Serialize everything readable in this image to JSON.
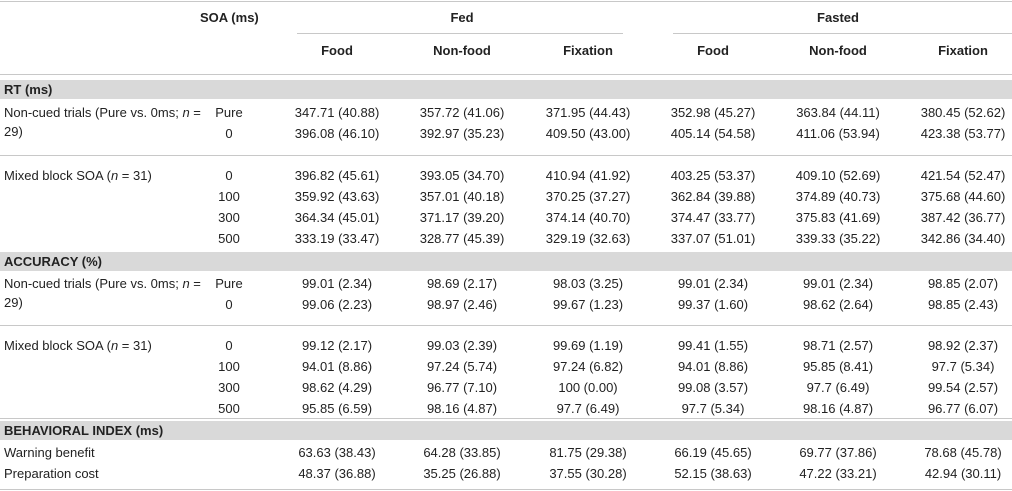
{
  "header": {
    "soa_label": "SOA (ms)",
    "fed": "Fed",
    "fasted": "Fasted",
    "columns": [
      "Food",
      "Non-food",
      "Fixation",
      "Food",
      "Non-food",
      "Fixation"
    ]
  },
  "sections": [
    {
      "title": "RT (ms)",
      "groups": [
        {
          "label_parts": [
            "Non-cued trials (Pure vs. 0ms; ",
            "n",
            " = 29)"
          ],
          "rows": [
            {
              "soa": "Pure",
              "values": [
                "347.71 (40.88)",
                "357.72 (41.06)",
                "371.95 (44.43)",
                "352.98 (45.27)",
                "363.84 (44.11)",
                "380.45 (52.62)"
              ]
            },
            {
              "soa": "0",
              "values": [
                "396.08 (46.10)",
                "392.97 (35.23)",
                "409.50 (43.00)",
                "405.14 (54.58)",
                "411.06 (53.94)",
                "423.38 (53.77)"
              ]
            }
          ]
        },
        {
          "label_parts": [
            "Mixed block SOA (",
            "n",
            " = 31)"
          ],
          "rows": [
            {
              "soa": "0",
              "values": [
                "396.82 (45.61)",
                "393.05 (34.70)",
                "410.94 (41.92)",
                "403.25 (53.37)",
                "409.10 (52.69)",
                "421.54 (52.47)"
              ]
            },
            {
              "soa": "100",
              "values": [
                "359.92 (43.63)",
                "357.01 (40.18)",
                "370.25 (37.27)",
                "362.84 (39.88)",
                "374.89 (40.73)",
                "375.68 (44.60)"
              ]
            },
            {
              "soa": "300",
              "values": [
                "364.34 (45.01)",
                "371.17 (39.20)",
                "374.14 (40.70)",
                "374.47 (33.77)",
                "375.83 (41.69)",
                "387.42 (36.77)"
              ]
            },
            {
              "soa": "500",
              "values": [
                "333.19 (33.47)",
                "328.77 (45.39)",
                "329.19 (32.63)",
                "337.07 (51.01)",
                "339.33 (35.22)",
                "342.86 (34.40)"
              ]
            }
          ]
        }
      ]
    },
    {
      "title": "ACCURACY (%)",
      "groups": [
        {
          "label_parts": [
            "Non-cued trials (Pure vs. 0ms; ",
            "n",
            " = 29)"
          ],
          "rows": [
            {
              "soa": "Pure",
              "values": [
                "99.01 (2.34)",
                "98.69 (2.17)",
                "98.03 (3.25)",
                "99.01 (2.34)",
                "99.01 (2.34)",
                "98.85 (2.07)"
              ]
            },
            {
              "soa": "0",
              "values": [
                "99.06 (2.23)",
                "98.97 (2.46)",
                "99.67 (1.23)",
                "99.37 (1.60)",
                "98.62 (2.64)",
                "98.85 (2.43)"
              ]
            }
          ]
        },
        {
          "label_parts": [
            "Mixed block SOA (",
            "n",
            " = 31)"
          ],
          "rows": [
            {
              "soa": "0",
              "values": [
                "99.12 (2.17)",
                "99.03 (2.39)",
                "99.69 (1.19)",
                "99.41 (1.55)",
                "98.71 (2.57)",
                "98.92 (2.37)"
              ]
            },
            {
              "soa": "100",
              "values": [
                "94.01 (8.86)",
                "97.24 (5.74)",
                "97.24 (6.82)",
                "94.01 (8.86)",
                "95.85 (8.41)",
                "97.7 (5.34)"
              ]
            },
            {
              "soa": "300",
              "values": [
                "98.62 (4.29)",
                "96.77 (7.10)",
                "100 (0.00)",
                "99.08 (3.57)",
                "97.7 (6.49)",
                "99.54 (2.57)"
              ]
            },
            {
              "soa": "500",
              "values": [
                "95.85 (6.59)",
                "98.16 (4.87)",
                "97.7 (6.49)",
                "97.7 (5.34)",
                "98.16 (4.87)",
                "96.77 (6.07)"
              ]
            }
          ]
        }
      ]
    },
    {
      "title": "BEHAVIORAL INDEX (ms)",
      "groups": [
        {
          "label_parts": [
            "Warning benefit"
          ],
          "rows": [
            {
              "soa": "",
              "values": [
                "63.63 (38.43)",
                "64.28 (33.85)",
                "81.75 (29.38)",
                "66.19 (45.65)",
                "69.77 (37.86)",
                "78.68 (45.78)"
              ]
            }
          ]
        },
        {
          "label_parts": [
            "Preparation cost"
          ],
          "rows": [
            {
              "soa": "",
              "values": [
                "48.37 (36.88)",
                "35.25 (26.88)",
                "37.55 (30.28)",
                "52.15 (38.63)",
                "47.22 (33.21)",
                "42.94 (30.11)"
              ]
            }
          ]
        }
      ]
    }
  ]
}
